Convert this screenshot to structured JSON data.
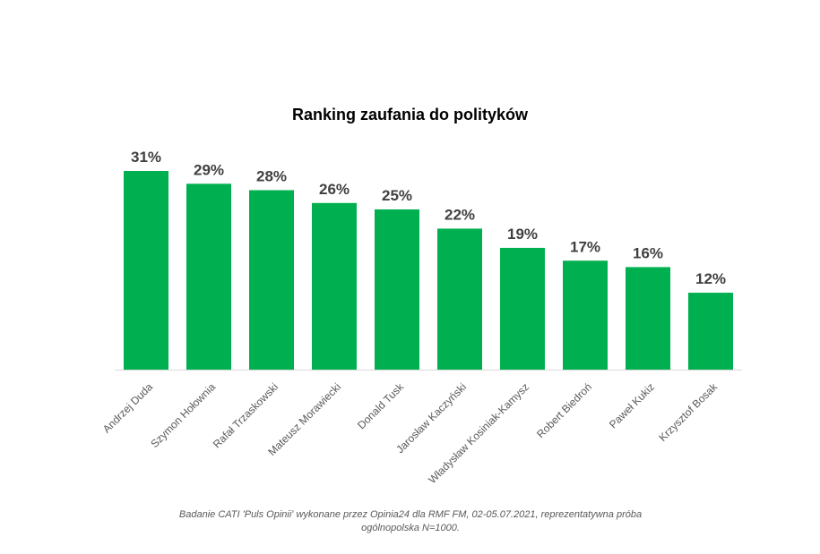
{
  "chart_data": {
    "type": "bar",
    "title": "Ranking zaufania do polityków",
    "categories": [
      "Andrzej Duda",
      "Szymon Hołownia",
      "Rafał Trzaskowski",
      "Mateusz Morawiecki",
      "Donald Tusk",
      "Jarosław Kaczyński",
      "Władysław Kosiniak-Kamysz",
      "Robert Biedroń",
      "Paweł Kukiz",
      "Krzysztof Bosak"
    ],
    "values": [
      31,
      29,
      28,
      26,
      25,
      22,
      19,
      17,
      16,
      12
    ],
    "value_labels": [
      "31%",
      "29%",
      "28%",
      "26%",
      "25%",
      "22%",
      "19%",
      "17%",
      "16%",
      "12%"
    ],
    "ylim": [
      0,
      31
    ],
    "grid": false,
    "legend": "none",
    "bar_color": "#00b050",
    "label_color": "#404040"
  },
  "footnote": {
    "line1": "Badanie CATI 'Puls Opinii' wykonane przez Opinia24 dla RMF FM, 02-05.07.2021, reprezentatywna próba",
    "line2": "ogólnopolska N=1000."
  }
}
